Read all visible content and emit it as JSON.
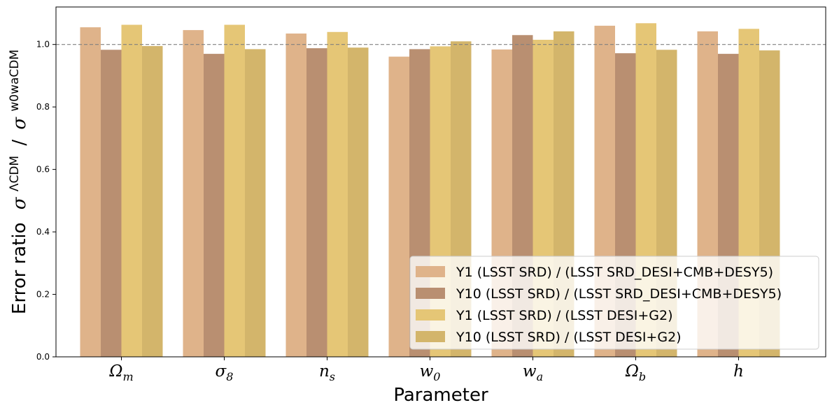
{
  "chart_data": {
    "type": "bar",
    "categories": [
      "Ω_m",
      "σ_8",
      "n_s",
      "w_0",
      "w_a",
      "Ω_b",
      "h"
    ],
    "category_display": [
      {
        "main": "Ω",
        "sub": "m"
      },
      {
        "main": "σ",
        "sub": "8"
      },
      {
        "main": "n",
        "sub": "s"
      },
      {
        "main": "w",
        "sub": "0"
      },
      {
        "main": "w",
        "sub": "a"
      },
      {
        "main": "Ω",
        "sub": "b"
      },
      {
        "main": "h",
        "sub": ""
      }
    ],
    "series": [
      {
        "name": "Y1 (LSST SRD) / (LSST SRD_DESI+CMB+DESY5)",
        "color": "#dfb38a",
        "values": [
          1.055,
          1.046,
          1.035,
          0.961,
          0.984,
          1.06,
          1.042
        ]
      },
      {
        "name": "Y10 (LSST SRD) / (LSST SRD_DESI+CMB+DESY5)",
        "color": "#b98f71",
        "values": [
          0.983,
          0.97,
          0.988,
          0.985,
          1.03,
          0.972,
          0.97
        ]
      },
      {
        "name": "Y1 (LSST SRD) / (LSST DESI+G2)",
        "color": "#e5c676",
        "values": [
          1.063,
          1.063,
          1.04,
          0.994,
          1.015,
          1.068,
          1.05
        ]
      },
      {
        "name": "Y10 (LSST SRD) / (LSST DESI+G2)",
        "color": "#d3b56b",
        "values": [
          0.995,
          0.985,
          0.99,
          1.01,
          1.042,
          0.983,
          0.981
        ]
      }
    ],
    "xlabel": "Parameter",
    "ylabel": "Error ratio",
    "ylabel_math": {
      "base": "σ",
      "sup1": "ΛCDM",
      "sep": "/",
      "sup2": "w0waCDM"
    },
    "ylim": [
      0,
      1.12
    ],
    "yticks": [
      0.0,
      0.2,
      0.4,
      0.6,
      0.8,
      1.0
    ],
    "ytick_labels": [
      "0.0",
      "0.2",
      "0.4",
      "0.6",
      "0.8",
      "1.0"
    ],
    "reference_line": {
      "y": 1.0,
      "style": "dashed",
      "color": "#808080"
    },
    "grid": false,
    "legend_position": "lower-right"
  }
}
